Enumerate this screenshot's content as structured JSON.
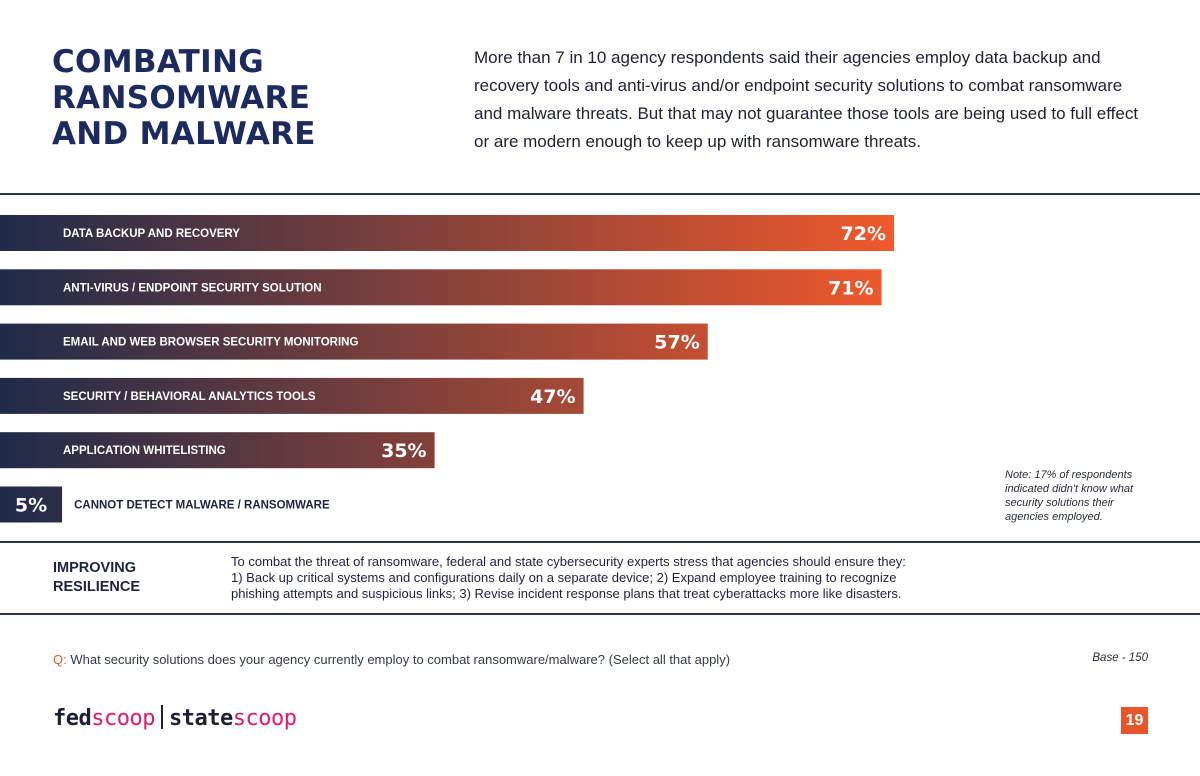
{
  "header": {
    "title_lines": [
      "COMBATING",
      "RANSOMWARE",
      "AND MALWARE"
    ],
    "intro": "More than 7 in 10 agency respondents said their agencies employ data backup and recovery tools and anti-virus and/or endpoint security solutions to combat ransomware and malware threats. But that may not guarantee those tools are being used to full effect or are modern enough to keep up with ransomware threats."
  },
  "chart_data": {
    "type": "bar",
    "orientation": "horizontal",
    "categories": [
      "DATA BACKUP AND RECOVERY",
      "ANTI-VIRUS / ENDPOINT SECURITY SOLUTION",
      "EMAIL AND WEB BROWSER SECURITY MONITORING",
      "SECURITY / BEHAVIORAL ANALYTICS TOOLS",
      "APPLICATION WHITELISTING",
      "CANNOT DETECT MALWARE / RANSOMWARE"
    ],
    "values": [
      72,
      71,
      57,
      47,
      35,
      5
    ],
    "value_labels": [
      "72%",
      "71%",
      "57%",
      "47%",
      "35%",
      "5%"
    ],
    "unit": "%",
    "xlim": [
      0,
      100
    ],
    "grid": false,
    "colors": {
      "gradient_start": "#1f2b49",
      "gradient_end": "#f0592b",
      "label": "#ffffff",
      "outside_label": "#1c2340"
    }
  },
  "note": "Note: 17% of respondents indicated didn't know what security solutions their agencies employed.",
  "resilience": {
    "heading_lines": [
      "IMPROVING",
      "RESILIENCE"
    ],
    "lines": [
      "To combat the threat of ransomware, federal and state cybersecurity experts stress that agencies should ensure they:",
      "1) Back up critical systems and configurations daily on a separate device; 2) Expand employee training to recognize",
      "phishing attempts and suspicious links; 3) Revise incident response plans that treat cyberattacks more like disasters."
    ]
  },
  "question": {
    "prefix": "Q:",
    "text": " What security solutions does your agency currently employ to combat ransomware/malware? (Select all that apply)"
  },
  "base": "Base - 150",
  "logo": {
    "fed": "fed",
    "scoop1": "scoop",
    "state": "state",
    "scoop2": "scoop"
  },
  "page_number": "19"
}
